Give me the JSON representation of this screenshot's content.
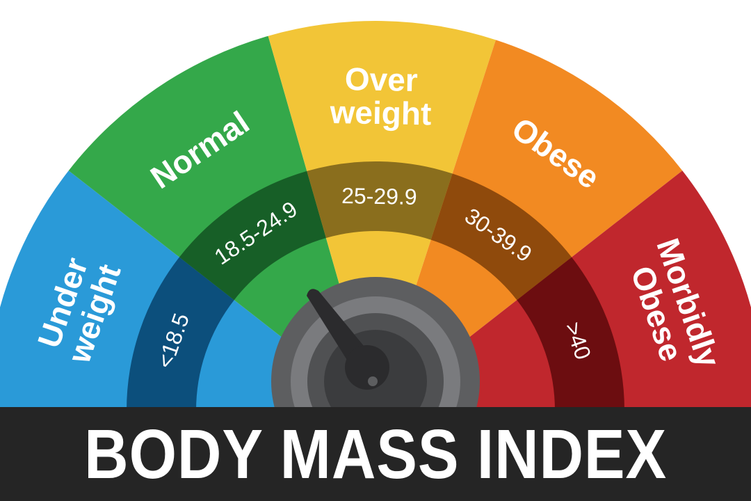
{
  "title": "BODY MASS INDEX",
  "categories": [
    {
      "key": "underweight",
      "lines": [
        "Under",
        "weight"
      ],
      "range": "<18.5",
      "color": "#2a9ad8",
      "band_color": "#0c4f7c"
    },
    {
      "key": "normal",
      "lines": [
        "Normal"
      ],
      "range": "18.5-24.9",
      "color": "#34a84a",
      "band_color": "#175f27"
    },
    {
      "key": "overweight",
      "lines": [
        "Over",
        "weight"
      ],
      "range": "25-29.9",
      "color": "#f2c537",
      "band_color": "#8a6e1d"
    },
    {
      "key": "obese",
      "lines": [
        "Obese"
      ],
      "range": "30-39.9",
      "color": "#f28a22",
      "band_color": "#8f4a0c"
    },
    {
      "key": "morbidly-obese",
      "lines": [
        "Morbidly",
        "Obese"
      ],
      "range": ">40",
      "color": "#c0272d",
      "band_color": "#6c0d10"
    }
  ],
  "title_bar_color": "#252525",
  "needle_color": "#2b2b2d",
  "hub_colors": [
    "#5d5e60",
    "#7a7b7e",
    "#505153",
    "#3b3c3e"
  ]
}
